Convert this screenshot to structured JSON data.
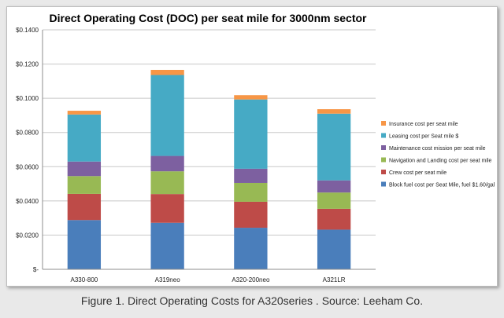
{
  "chart_data": {
    "type": "bar",
    "stacked": true,
    "title": "Direct Operating Cost (DOC)  per seat mile for 3000nm sector",
    "xlabel": "",
    "ylabel": "",
    "ylim": [
      0,
      0.14
    ],
    "yticks": [
      0,
      0.02,
      0.04,
      0.06,
      0.08,
      0.1,
      0.12,
      0.14
    ],
    "ytick_labels": [
      "$-",
      "$0.0200",
      "$0.0400",
      "$0.0600",
      "$0.0800",
      "$0.1000",
      "$0.1200",
      "$0.1400"
    ],
    "grid": true,
    "legend_position": "right",
    "categories": [
      "A330-800",
      "A319neo",
      "A320-200neo",
      "A321LR"
    ],
    "series": [
      {
        "name": "Block fuel cost per Seat Mile, fuel $1.60/gal",
        "color": "#4a7ebb",
        "values": [
          0.0288,
          0.0272,
          0.0243,
          0.0232
        ]
      },
      {
        "name": "Crew cost per seat mile",
        "color": "#be4b48",
        "values": [
          0.0153,
          0.0168,
          0.0152,
          0.0122
        ]
      },
      {
        "name": "Navigation and  Landing cost per seat mile",
        "color": "#98b954",
        "values": [
          0.0104,
          0.0133,
          0.011,
          0.0095
        ]
      },
      {
        "name": "Maintenance cost mission per seat mile",
        "color": "#7d60a0",
        "values": [
          0.0085,
          0.009,
          0.0083,
          0.0071
        ]
      },
      {
        "name": "Leasing cost per Seat mile $",
        "color": "#46aac5",
        "values": [
          0.0275,
          0.0473,
          0.0405,
          0.039
        ]
      },
      {
        "name": "Insurance cost per seat mile",
        "color": "#f79646",
        "values": [
          0.0022,
          0.003,
          0.0025,
          0.0026
        ]
      }
    ]
  },
  "caption": "Figure 1. Direct Operating Costs for A320series . Source: Leeham Co."
}
